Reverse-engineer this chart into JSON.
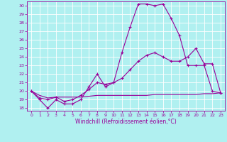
{
  "xlabel": "Windchill (Refroidissement éolien,°C)",
  "bg_color": "#b0f0f0",
  "grid_color": "#ffffff",
  "line_color": "#990099",
  "xlim": [
    -0.5,
    23.5
  ],
  "ylim": [
    17.7,
    30.5
  ],
  "yticks": [
    18,
    19,
    20,
    21,
    22,
    23,
    24,
    25,
    26,
    27,
    28,
    29,
    30
  ],
  "xticks": [
    0,
    1,
    2,
    3,
    4,
    5,
    6,
    7,
    8,
    9,
    10,
    11,
    12,
    13,
    14,
    15,
    16,
    17,
    18,
    19,
    20,
    21,
    22,
    23
  ],
  "line1_x": [
    0,
    1,
    2,
    3,
    4,
    5,
    6,
    7,
    8,
    9,
    10,
    11,
    12,
    13,
    14,
    15,
    16,
    17,
    18,
    19,
    20,
    21,
    22,
    23
  ],
  "line1_y": [
    20.0,
    19.0,
    18.0,
    19.0,
    18.5,
    18.5,
    19.0,
    20.5,
    22.0,
    20.5,
    21.0,
    24.5,
    27.5,
    30.2,
    30.2,
    30.0,
    30.2,
    28.5,
    26.5,
    23.0,
    23.0,
    23.0,
    20.0,
    19.8
  ],
  "line2_x": [
    0,
    1,
    2,
    3,
    4,
    5,
    6,
    7,
    8,
    9,
    10,
    11,
    12,
    13,
    14,
    15,
    16,
    17,
    18,
    19,
    20,
    21,
    22,
    23
  ],
  "line2_y": [
    20.0,
    19.2,
    19.0,
    19.3,
    18.8,
    19.0,
    19.5,
    20.2,
    21.0,
    20.8,
    21.0,
    21.5,
    22.5,
    23.5,
    24.2,
    24.5,
    24.0,
    23.5,
    23.5,
    24.0,
    25.0,
    23.2,
    23.2,
    19.8
  ],
  "line3_x": [
    0,
    1,
    2,
    3,
    4,
    5,
    6,
    7,
    8,
    9,
    10,
    11,
    12,
    13,
    14,
    15,
    16,
    17,
    18,
    19,
    20,
    21,
    22,
    23
  ],
  "line3_y": [
    20.0,
    19.5,
    19.2,
    19.3,
    19.3,
    19.3,
    19.3,
    19.4,
    19.5,
    19.5,
    19.5,
    19.5,
    19.5,
    19.5,
    19.5,
    19.6,
    19.6,
    19.6,
    19.6,
    19.6,
    19.6,
    19.7,
    19.7,
    19.8
  ]
}
